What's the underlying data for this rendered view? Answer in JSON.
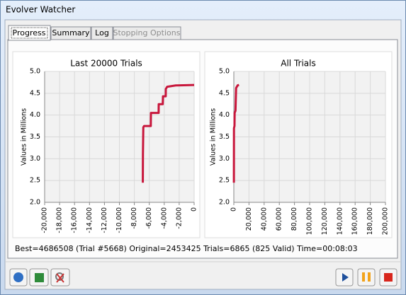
{
  "window_title": "Evolver Watcher",
  "tabs": [
    "Progress",
    "Summary",
    "Log",
    "Stopping Options"
  ],
  "status": "Best=4686508 (Trial #5668) Original=2453425 Trials=6865 (825 Valid) Time=00:08:03",
  "chart_data": [
    {
      "type": "line",
      "title": "Last 20000 Trials",
      "y_label": "Values in Millions",
      "x": [
        -6865,
        -6850,
        -6800,
        -6700,
        -5800,
        -5780,
        -4750,
        -4740,
        -4200,
        -4170,
        -3800,
        -3790,
        -3600,
        -2460,
        0
      ],
      "series": [
        {
          "color": "#c8173c",
          "values": [
            2.45,
            3.1,
            3.72,
            3.75,
            3.75,
            4.05,
            4.05,
            4.25,
            4.25,
            4.43,
            4.43,
            4.6,
            4.65,
            4.68,
            4.69
          ]
        }
      ],
      "xlim": [
        -20000,
        0
      ],
      "xticks": [
        {
          "value": -20000,
          "label": "-20,000"
        },
        {
          "value": -18000,
          "label": "-18,000"
        },
        {
          "value": -16000,
          "label": "-16,000"
        },
        {
          "value": -14000,
          "label": "-14,000"
        },
        {
          "value": -12000,
          "label": "-12,000"
        },
        {
          "value": -10000,
          "label": "-10,000"
        },
        {
          "value": -8000,
          "label": "-8,000"
        },
        {
          "value": -6000,
          "label": "-6,000"
        },
        {
          "value": -4000,
          "label": "-4,000"
        },
        {
          "value": -2000,
          "label": "-2,000"
        },
        0
      ],
      "ylim": [
        2,
        5
      ],
      "yticks": [
        {
          "value": 2,
          "label": "2.0"
        },
        2.5,
        {
          "value": 3,
          "label": "3.0"
        },
        3.5,
        {
          "value": 4,
          "label": "4.0"
        },
        4.5,
        {
          "value": 5,
          "label": "5.0"
        }
      ],
      "grid": true
    },
    {
      "type": "line",
      "title": "All Trials",
      "y_label": "Values in Millions",
      "x": [
        100,
        200,
        900,
        1100,
        2200,
        3000,
        4000,
        5000,
        6865
      ],
      "series": [
        {
          "color": "#c8173c",
          "values": [
            2.45,
            3.7,
            3.75,
            4.05,
            4.1,
            4.62,
            4.65,
            4.68,
            4.69
          ]
        }
      ],
      "xlim": [
        0,
        200000
      ],
      "xticks": [
        0,
        {
          "value": 20000,
          "label": "20,000"
        },
        {
          "value": 40000,
          "label": "40,000"
        },
        {
          "value": 60000,
          "label": "60,000"
        },
        {
          "value": 80000,
          "label": "80,000"
        },
        {
          "value": 100000,
          "label": "100,000"
        },
        {
          "value": 120000,
          "label": "120,000"
        },
        {
          "value": 140000,
          "label": "140,000"
        },
        {
          "value": 160000,
          "label": "160,000"
        },
        {
          "value": 180000,
          "label": "180,000"
        },
        {
          "value": 200000,
          "label": "200,000"
        }
      ],
      "ylim": [
        2,
        5
      ],
      "yticks": [
        {
          "value": 2,
          "label": "2.0"
        },
        2.5,
        {
          "value": 3,
          "label": "3.0"
        },
        3.5,
        {
          "value": 4,
          "label": "4.0"
        },
        4.5,
        {
          "value": 5,
          "label": "5.0"
        }
      ],
      "grid": true
    }
  ]
}
